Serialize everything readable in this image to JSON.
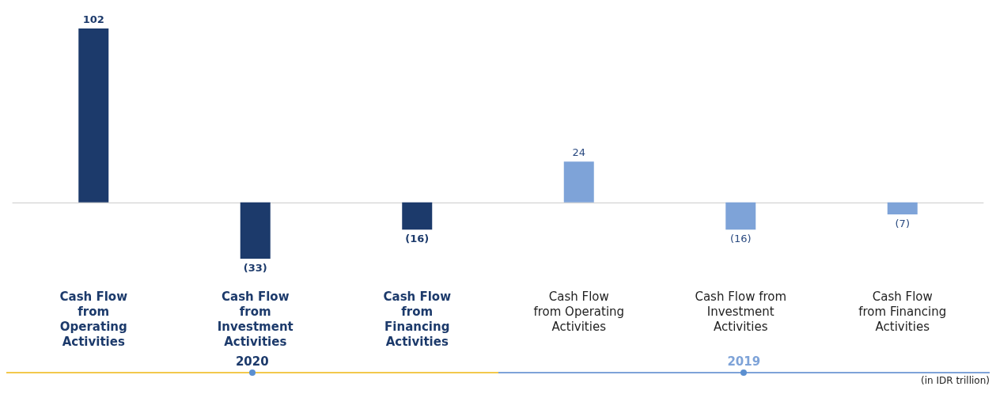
{
  "chart_data": {
    "type": "bar",
    "categories": [
      "Cash Flow\nfrom\nOperating\nActivities",
      "Cash Flow\nfrom\nInvestment\nActivities",
      "Cash Flow\nfrom\nFinancing\nActivities",
      "Cash Flow\nfrom Operating\nActivities",
      "Cash Flow from\nInvestment\nActivities",
      "Cash Flow\nfrom Financing\nActivities"
    ],
    "series": [
      {
        "name": "2020",
        "color": "#1c3a6b",
        "values": [
          102,
          -33,
          -16,
          null,
          null,
          null
        ],
        "value_labels": [
          "102",
          "(33)",
          "(16)",
          null,
          null,
          null
        ]
      },
      {
        "name": "2019",
        "color": "#7ea3d8",
        "values": [
          null,
          null,
          null,
          24,
          -16,
          -7
        ],
        "value_labels": [
          null,
          null,
          null,
          "24",
          "(16)",
          "(7)"
        ]
      }
    ],
    "annotations": [
      "(in IDR trillion)"
    ],
    "grid": false,
    "legend": false
  }
}
